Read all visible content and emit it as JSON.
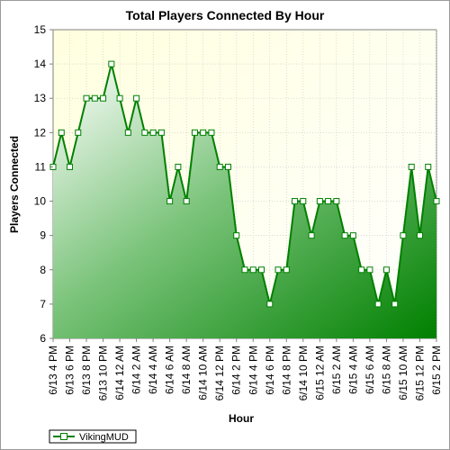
{
  "chart_data": {
    "type": "area",
    "title": "Total Players Connected By Hour",
    "xlabel": "Hour",
    "ylabel": "Players Connected",
    "ylim": [
      6,
      15
    ],
    "yticks": [
      "6",
      "7",
      "8",
      "9",
      "10",
      "11",
      "12",
      "13",
      "14",
      "15"
    ],
    "grid": true,
    "legend_position": "bottom-left",
    "x_tick_labels": [
      "6/13 4 PM",
      "6/13 6 PM",
      "6/13 8 PM",
      "6/13 10 PM",
      "6/14 12 AM",
      "6/14 2 AM",
      "6/14 4 AM",
      "6/14 6 AM",
      "6/14 8 AM",
      "6/14 10 AM",
      "6/14 12 PM",
      "6/14 2 PM",
      "6/14 4 PM",
      "6/14 6 PM",
      "6/14 8 PM",
      "6/14 10 PM",
      "6/15 12 AM",
      "6/15 2 AM",
      "6/15 4 AM",
      "6/15 6 AM",
      "6/15 8 AM",
      "6/15 10 AM",
      "6/15 12 PM",
      "6/15 2 PM"
    ],
    "series": [
      {
        "name": "VikingMUD",
        "color": "#008000",
        "values": [
          11,
          12,
          11,
          12,
          13,
          13,
          13,
          14,
          13,
          12,
          13,
          12,
          12,
          12,
          10,
          11,
          10,
          12,
          12,
          12,
          11,
          11,
          9,
          8,
          8,
          8,
          7,
          8,
          8,
          10,
          10,
          9,
          10,
          10,
          10,
          9,
          9,
          8,
          8,
          7,
          8,
          7,
          9,
          11,
          9,
          11,
          10
        ]
      }
    ]
  }
}
